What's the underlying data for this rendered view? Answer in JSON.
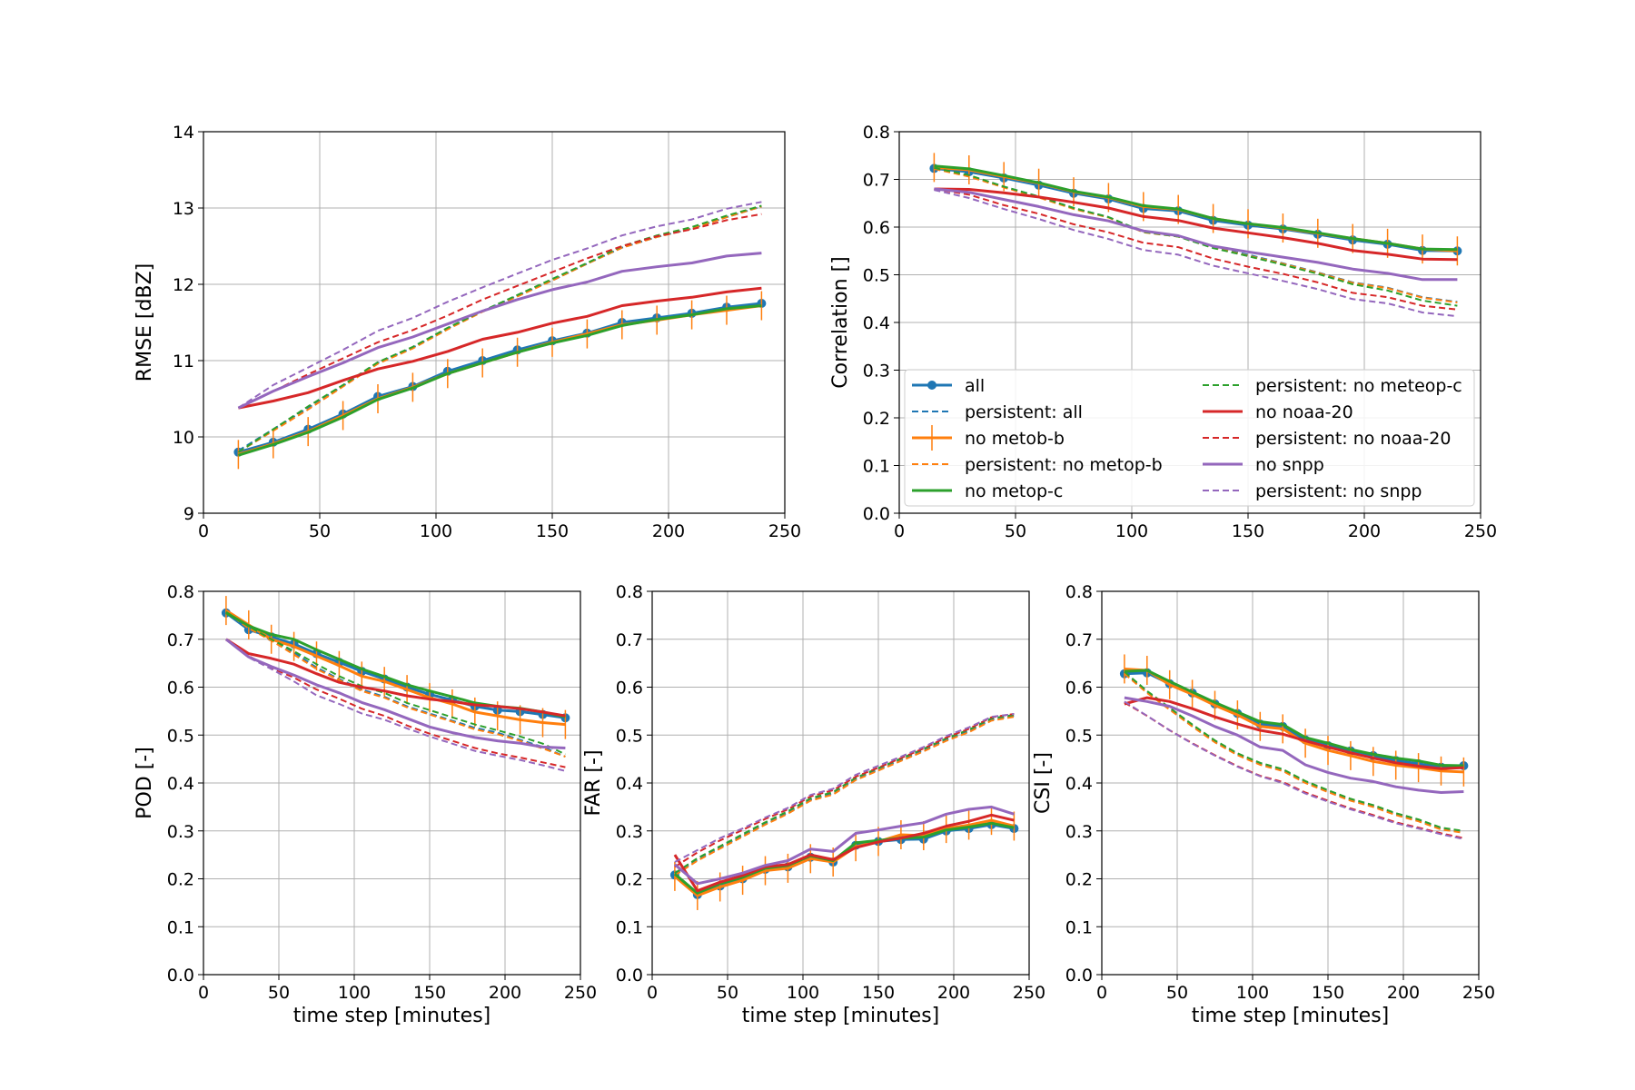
{
  "x": [
    15,
    30,
    45,
    60,
    75,
    90,
    105,
    120,
    135,
    150,
    165,
    180,
    195,
    210,
    225,
    240
  ],
  "series_styles": [
    {
      "key": "all",
      "name": "all",
      "color": "#1f77b4",
      "dash": false,
      "marker": "circle"
    },
    {
      "key": "p_all",
      "name": "persistent: all",
      "color": "#1f77b4",
      "dash": true,
      "marker": "none"
    },
    {
      "key": "metopb",
      "name": "no metob-b",
      "color": "#ff7f0e",
      "dash": false,
      "marker": "vline"
    },
    {
      "key": "p_metopb",
      "name": "persistent: no metop-b",
      "color": "#ff7f0e",
      "dash": true,
      "marker": "none"
    },
    {
      "key": "metopc",
      "name": "no metop-c",
      "color": "#2ca02c",
      "dash": false,
      "marker": "none"
    },
    {
      "key": "p_metopc",
      "name": "persistent: no meteop-c",
      "color": "#2ca02c",
      "dash": true,
      "marker": "none"
    },
    {
      "key": "noaa20",
      "name": "no noaa-20",
      "color": "#d62728",
      "dash": false,
      "marker": "none"
    },
    {
      "key": "p_noaa20",
      "name": "persistent: no noaa-20",
      "color": "#d62728",
      "dash": true,
      "marker": "none"
    },
    {
      "key": "snpp",
      "name": "no snpp",
      "color": "#9467bd",
      "dash": false,
      "marker": "none"
    },
    {
      "key": "p_snpp",
      "name": "persistent: no snpp",
      "color": "#9467bd",
      "dash": true,
      "marker": "none"
    }
  ],
  "chart_data": [
    {
      "id": "rmse",
      "type": "line",
      "title": "",
      "xlabel": "",
      "ylabel": "RMSE [dBZ]",
      "xlim": [
        0,
        250
      ],
      "ylim": [
        9,
        14
      ],
      "xticks": [
        0,
        50,
        100,
        150,
        200,
        250
      ],
      "yticks": [
        9,
        10,
        11,
        12,
        13,
        14
      ],
      "grid": true,
      "series": {
        "all": [
          9.8,
          9.93,
          10.1,
          10.3,
          10.53,
          10.66,
          10.86,
          11.0,
          11.14,
          11.26,
          11.36,
          11.5,
          11.56,
          11.62,
          11.7,
          11.75
        ],
        "p_all": [
          9.82,
          10.1,
          10.38,
          10.67,
          10.97,
          11.17,
          11.42,
          11.65,
          11.85,
          12.05,
          12.27,
          12.48,
          12.62,
          12.73,
          12.88,
          13.02
        ],
        "metopb": [
          9.77,
          9.91,
          10.07,
          10.28,
          10.5,
          10.65,
          10.83,
          10.97,
          11.11,
          11.24,
          11.35,
          11.47,
          11.53,
          11.6,
          11.66,
          11.72
        ],
        "p_metopb": [
          9.8,
          10.08,
          10.36,
          10.66,
          10.96,
          11.16,
          11.41,
          11.64,
          11.84,
          12.05,
          12.27,
          12.48,
          12.62,
          12.73,
          12.88,
          13.02
        ],
        "metopc": [
          9.76,
          9.9,
          10.06,
          10.26,
          10.49,
          10.64,
          10.83,
          10.97,
          11.11,
          11.23,
          11.33,
          11.46,
          11.54,
          11.6,
          11.68,
          11.72
        ],
        "p_metopc": [
          9.8,
          10.1,
          10.4,
          10.68,
          10.98,
          11.18,
          11.43,
          11.65,
          11.86,
          12.07,
          12.28,
          12.5,
          12.64,
          12.75,
          12.9,
          13.03
        ],
        "noaa20": [
          10.38,
          10.47,
          10.58,
          10.74,
          10.89,
          10.99,
          11.12,
          11.28,
          11.37,
          11.49,
          11.58,
          11.72,
          11.78,
          11.83,
          11.9,
          11.95
        ],
        "p_noaa20": [
          10.38,
          10.6,
          10.82,
          11.03,
          11.24,
          11.4,
          11.59,
          11.8,
          11.98,
          12.16,
          12.34,
          12.5,
          12.63,
          12.72,
          12.84,
          12.92
        ],
        "snpp": [
          10.38,
          10.6,
          10.79,
          10.97,
          11.17,
          11.31,
          11.48,
          11.65,
          11.8,
          11.93,
          12.03,
          12.17,
          12.23,
          12.28,
          12.37,
          12.41
        ],
        "p_snpp": [
          10.38,
          10.68,
          10.91,
          11.14,
          11.39,
          11.56,
          11.77,
          11.96,
          12.14,
          12.32,
          12.47,
          12.64,
          12.76,
          12.85,
          12.99,
          13.08
        ]
      }
    },
    {
      "id": "corr",
      "type": "line",
      "title": "",
      "xlabel": "",
      "ylabel": "Correlation []",
      "xlim": [
        0,
        250
      ],
      "ylim": [
        0,
        0.8
      ],
      "xticks": [
        0,
        50,
        100,
        150,
        200,
        250
      ],
      "yticks": [
        "0.0",
        "0.1",
        "0.2",
        "0.3",
        "0.4",
        "0.5",
        "0.6",
        "0.7",
        "0.8"
      ],
      "grid": true,
      "legend": "lower-center",
      "series": {
        "all": [
          0.723,
          0.716,
          0.703,
          0.688,
          0.671,
          0.659,
          0.639,
          0.634,
          0.614,
          0.604,
          0.596,
          0.585,
          0.573,
          0.564,
          0.551,
          0.55
        ],
        "p_all": [
          0.722,
          0.708,
          0.685,
          0.664,
          0.64,
          0.621,
          0.59,
          0.581,
          0.558,
          0.542,
          0.524,
          0.505,
          0.484,
          0.473,
          0.453,
          0.443
        ],
        "metopb": [
          0.725,
          0.72,
          0.706,
          0.692,
          0.674,
          0.662,
          0.643,
          0.637,
          0.618,
          0.607,
          0.598,
          0.587,
          0.576,
          0.566,
          0.554,
          0.55
        ],
        "p_metopb": [
          0.722,
          0.706,
          0.683,
          0.662,
          0.638,
          0.62,
          0.589,
          0.58,
          0.557,
          0.54,
          0.523,
          0.504,
          0.483,
          0.472,
          0.452,
          0.442
        ],
        "metopc": [
          0.728,
          0.722,
          0.708,
          0.693,
          0.675,
          0.663,
          0.645,
          0.638,
          0.618,
          0.607,
          0.599,
          0.588,
          0.576,
          0.566,
          0.554,
          0.553
        ],
        "p_metopc": [
          0.724,
          0.709,
          0.685,
          0.664,
          0.64,
          0.621,
          0.59,
          0.58,
          0.556,
          0.539,
          0.521,
          0.502,
          0.48,
          0.467,
          0.446,
          0.435
        ],
        "noaa20": [
          0.68,
          0.679,
          0.672,
          0.663,
          0.652,
          0.64,
          0.622,
          0.614,
          0.598,
          0.588,
          0.578,
          0.566,
          0.551,
          0.543,
          0.533,
          0.532
        ],
        "p_noaa20": [
          0.68,
          0.668,
          0.646,
          0.628,
          0.606,
          0.589,
          0.567,
          0.558,
          0.534,
          0.517,
          0.502,
          0.484,
          0.462,
          0.453,
          0.435,
          0.427
        ],
        "snpp": [
          0.68,
          0.673,
          0.658,
          0.643,
          0.626,
          0.613,
          0.592,
          0.582,
          0.56,
          0.548,
          0.537,
          0.526,
          0.512,
          0.503,
          0.49,
          0.49
        ],
        "p_snpp": [
          0.678,
          0.661,
          0.638,
          0.617,
          0.594,
          0.575,
          0.552,
          0.542,
          0.519,
          0.503,
          0.487,
          0.47,
          0.449,
          0.44,
          0.421,
          0.413
        ]
      }
    },
    {
      "id": "pod",
      "type": "line",
      "title": "",
      "xlabel": "time step [minutes]",
      "ylabel": "POD [-]",
      "xlim": [
        0,
        250
      ],
      "ylim": [
        0,
        0.8
      ],
      "xticks": [
        0,
        50,
        100,
        150,
        200,
        250
      ],
      "yticks": [
        "0.0",
        "0.1",
        "0.2",
        "0.3",
        "0.4",
        "0.5",
        "0.6",
        "0.7",
        "0.8"
      ],
      "grid": true,
      "series": {
        "all": [
          0.755,
          0.72,
          0.705,
          0.69,
          0.67,
          0.652,
          0.633,
          0.617,
          0.6,
          0.585,
          0.573,
          0.56,
          0.552,
          0.549,
          0.543,
          0.536
        ],
        "p_all": [
          0.757,
          0.725,
          0.7,
          0.672,
          0.641,
          0.617,
          0.595,
          0.58,
          0.56,
          0.545,
          0.53,
          0.515,
          0.505,
          0.49,
          0.475,
          0.455
        ],
        "metopb": [
          0.76,
          0.73,
          0.7,
          0.685,
          0.665,
          0.645,
          0.623,
          0.612,
          0.595,
          0.578,
          0.565,
          0.548,
          0.54,
          0.532,
          0.526,
          0.522
        ],
        "p_metopb": [
          0.757,
          0.723,
          0.697,
          0.668,
          0.638,
          0.615,
          0.592,
          0.578,
          0.558,
          0.543,
          0.528,
          0.512,
          0.502,
          0.488,
          0.472,
          0.455
        ],
        "metopc": [
          0.755,
          0.728,
          0.71,
          0.7,
          0.678,
          0.658,
          0.638,
          0.622,
          0.605,
          0.592,
          0.58,
          0.567,
          0.56,
          0.556,
          0.548,
          0.538
        ],
        "p_metopc": [
          0.757,
          0.727,
          0.7,
          0.675,
          0.648,
          0.623,
          0.602,
          0.588,
          0.567,
          0.552,
          0.537,
          0.522,
          0.51,
          0.497,
          0.482,
          0.46
        ],
        "noaa20": [
          0.7,
          0.67,
          0.66,
          0.648,
          0.628,
          0.61,
          0.6,
          0.592,
          0.582,
          0.575,
          0.57,
          0.563,
          0.56,
          0.555,
          0.548,
          0.54
        ],
        "p_noaa20": [
          0.7,
          0.665,
          0.64,
          0.62,
          0.595,
          0.576,
          0.555,
          0.54,
          0.52,
          0.503,
          0.488,
          0.473,
          0.462,
          0.453,
          0.443,
          0.433
        ],
        "snpp": [
          0.7,
          0.663,
          0.643,
          0.625,
          0.605,
          0.588,
          0.568,
          0.553,
          0.535,
          0.517,
          0.505,
          0.495,
          0.488,
          0.483,
          0.475,
          0.473
        ],
        "p_snpp": [
          0.7,
          0.662,
          0.638,
          0.612,
          0.583,
          0.565,
          0.545,
          0.532,
          0.514,
          0.497,
          0.482,
          0.467,
          0.457,
          0.448,
          0.437,
          0.425
        ]
      }
    },
    {
      "id": "far",
      "type": "line",
      "title": "",
      "xlabel": "time step [minutes]",
      "ylabel": "FAR [-]",
      "xlim": [
        0,
        250
      ],
      "ylim": [
        0,
        0.8
      ],
      "xticks": [
        0,
        50,
        100,
        150,
        200,
        250
      ],
      "yticks": [
        "0.0",
        "0.1",
        "0.2",
        "0.3",
        "0.4",
        "0.5",
        "0.6",
        "0.7",
        "0.8"
      ],
      "grid": true,
      "series": {
        "all": [
          0.208,
          0.167,
          0.185,
          0.2,
          0.22,
          0.225,
          0.245,
          0.235,
          0.27,
          0.278,
          0.282,
          0.283,
          0.3,
          0.305,
          0.313,
          0.305
        ],
        "p_all": [
          0.21,
          0.24,
          0.265,
          0.29,
          0.315,
          0.338,
          0.365,
          0.378,
          0.408,
          0.428,
          0.448,
          0.468,
          0.49,
          0.508,
          0.532,
          0.54
        ],
        "metopb": [
          0.205,
          0.165,
          0.183,
          0.197,
          0.217,
          0.222,
          0.242,
          0.235,
          0.267,
          0.278,
          0.292,
          0.29,
          0.305,
          0.312,
          0.322,
          0.31
        ],
        "p_metopb": [
          0.207,
          0.238,
          0.263,
          0.288,
          0.313,
          0.336,
          0.363,
          0.376,
          0.406,
          0.426,
          0.446,
          0.466,
          0.488,
          0.506,
          0.53,
          0.538
        ],
        "metopc": [
          0.21,
          0.17,
          0.19,
          0.203,
          0.222,
          0.228,
          0.248,
          0.238,
          0.275,
          0.28,
          0.285,
          0.287,
          0.302,
          0.308,
          0.316,
          0.307
        ],
        "p_metopc": [
          0.212,
          0.243,
          0.268,
          0.293,
          0.318,
          0.341,
          0.368,
          0.381,
          0.411,
          0.431,
          0.451,
          0.471,
          0.493,
          0.511,
          0.535,
          0.542
        ],
        "noaa20": [
          0.25,
          0.175,
          0.193,
          0.207,
          0.225,
          0.23,
          0.25,
          0.24,
          0.265,
          0.277,
          0.285,
          0.295,
          0.31,
          0.32,
          0.333,
          0.322
        ],
        "p_noaa20": [
          0.225,
          0.255,
          0.28,
          0.302,
          0.325,
          0.345,
          0.372,
          0.385,
          0.413,
          0.432,
          0.452,
          0.472,
          0.495,
          0.513,
          0.537,
          0.544
        ],
        "snpp": [
          0.23,
          0.19,
          0.2,
          0.212,
          0.228,
          0.238,
          0.262,
          0.257,
          0.295,
          0.302,
          0.31,
          0.317,
          0.335,
          0.345,
          0.35,
          0.335
        ],
        "p_snpp": [
          0.235,
          0.26,
          0.285,
          0.305,
          0.328,
          0.348,
          0.375,
          0.388,
          0.417,
          0.436,
          0.455,
          0.475,
          0.498,
          0.516,
          0.538,
          0.544
        ]
      }
    },
    {
      "id": "csi",
      "type": "line",
      "title": "",
      "xlabel": "time step [minutes]",
      "ylabel": "CSI [-]",
      "xlim": [
        0,
        250
      ],
      "ylim": [
        0,
        0.8
      ],
      "xticks": [
        0,
        50,
        100,
        150,
        200,
        250
      ],
      "yticks": [
        "0.0",
        "0.1",
        "0.2",
        "0.3",
        "0.4",
        "0.5",
        "0.6",
        "0.7",
        "0.8"
      ],
      "grid": true,
      "series": {
        "all": [
          0.628,
          0.63,
          0.607,
          0.588,
          0.565,
          0.545,
          0.523,
          0.518,
          0.49,
          0.478,
          0.467,
          0.457,
          0.447,
          0.44,
          0.433,
          0.436
        ],
        "p_all": [
          0.63,
          0.59,
          0.555,
          0.52,
          0.487,
          0.46,
          0.44,
          0.427,
          0.402,
          0.383,
          0.365,
          0.352,
          0.335,
          0.322,
          0.305,
          0.298
        ],
        "metopb": [
          0.638,
          0.635,
          0.605,
          0.585,
          0.562,
          0.542,
          0.518,
          0.513,
          0.483,
          0.468,
          0.457,
          0.445,
          0.437,
          0.432,
          0.425,
          0.423
        ],
        "p_metopb": [
          0.628,
          0.588,
          0.553,
          0.518,
          0.485,
          0.458,
          0.438,
          0.425,
          0.4,
          0.381,
          0.363,
          0.35,
          0.333,
          0.32,
          0.303,
          0.296
        ],
        "metopc": [
          0.633,
          0.635,
          0.612,
          0.59,
          0.568,
          0.548,
          0.528,
          0.522,
          0.495,
          0.483,
          0.47,
          0.46,
          0.452,
          0.446,
          0.437,
          0.436
        ],
        "p_metopc": [
          0.632,
          0.592,
          0.557,
          0.522,
          0.489,
          0.462,
          0.442,
          0.429,
          0.404,
          0.385,
          0.367,
          0.354,
          0.337,
          0.324,
          0.307,
          0.3
        ],
        "noaa20": [
          0.565,
          0.578,
          0.57,
          0.555,
          0.538,
          0.523,
          0.51,
          0.502,
          0.488,
          0.475,
          0.463,
          0.452,
          0.442,
          0.435,
          0.43,
          0.432
        ],
        "p_noaa20": [
          0.568,
          0.54,
          0.51,
          0.483,
          0.458,
          0.435,
          0.415,
          0.402,
          0.38,
          0.363,
          0.347,
          0.333,
          0.318,
          0.307,
          0.295,
          0.285
        ],
        "snpp": [
          0.578,
          0.57,
          0.56,
          0.54,
          0.518,
          0.5,
          0.475,
          0.468,
          0.438,
          0.422,
          0.41,
          0.403,
          0.392,
          0.385,
          0.38,
          0.382
        ],
        "p_snpp": [
          0.57,
          0.54,
          0.51,
          0.482,
          0.457,
          0.434,
          0.414,
          0.4,
          0.378,
          0.361,
          0.345,
          0.331,
          0.316,
          0.305,
          0.293,
          0.283
        ]
      }
    }
  ]
}
